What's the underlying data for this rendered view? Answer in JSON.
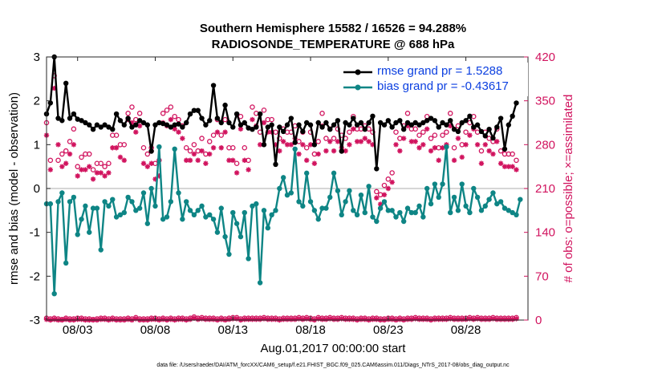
{
  "colors": {
    "rmse": "#000000",
    "bias": "#0e8585",
    "obs": "#d1135e",
    "zero": "#bdbdbd",
    "legend_text": "#0b3fe0"
  },
  "chart_data": {
    "type": "line",
    "title": "Southern Hemisphere 15582 / 16526 = 94.288%",
    "subtitle": "RADIOSONDE_TEMPERATURE @ 688 hPa",
    "xlabel": "Aug.01,2017 00:00:00 start",
    "ylabel_left": "rmse and bias (model - observation)",
    "ylabel_right": "# of obs: o=possible; ×=assimilated",
    "footnote": "data file: /Users/raeder/DAI/ATM_forcXX/CAM6_setup/f.e21.FHIST_BGC.f09_025.CAM6assim.011/Diags_NTrS_2017-08/obs_diag_output.nc",
    "xlim": [
      1,
      32
    ],
    "ylim_left": [
      -3,
      3
    ],
    "ylim_right": [
      0,
      420
    ],
    "xticks": [
      3,
      8,
      13,
      18,
      23,
      28
    ],
    "xtick_labels": [
      "08/03",
      "08/08",
      "08/13",
      "08/18",
      "08/23",
      "08/28"
    ],
    "yticks_left": [
      -3,
      -2,
      -1,
      0,
      1,
      2,
      3
    ],
    "yticks_right": [
      0,
      70,
      140,
      210,
      280,
      350,
      420
    ],
    "legend": {
      "rmse_label": "rmse grand pr = 1.5288",
      "bias_label": "bias grand pr = -0.43617"
    },
    "times": [
      1.0,
      1.25,
      1.5,
      1.75,
      2.0,
      2.25,
      2.5,
      2.75,
      3.0,
      3.25,
      3.5,
      3.75,
      4.0,
      4.25,
      4.5,
      4.75,
      5.0,
      5.25,
      5.5,
      5.75,
      6.0,
      6.25,
      6.5,
      6.75,
      7.0,
      7.25,
      7.5,
      7.75,
      8.0,
      8.25,
      8.5,
      8.75,
      9.0,
      9.25,
      9.5,
      9.75,
      10.0,
      10.25,
      10.5,
      10.75,
      11.0,
      11.25,
      11.5,
      11.75,
      12.0,
      12.25,
      12.5,
      12.75,
      13.0,
      13.25,
      13.5,
      13.75,
      14.0,
      14.25,
      14.5,
      14.75,
      15.0,
      15.25,
      15.5,
      15.75,
      16.0,
      16.25,
      16.5,
      16.75,
      17.0,
      17.25,
      17.5,
      17.75,
      18.0,
      18.25,
      18.5,
      18.75,
      19.0,
      19.25,
      19.5,
      19.75,
      20.0,
      20.25,
      20.5,
      20.75,
      21.0,
      21.25,
      21.5,
      21.75,
      22.0,
      22.25,
      22.5,
      22.75,
      23.0,
      23.25,
      23.5,
      23.75,
      24.0,
      24.25,
      24.5,
      24.75,
      25.0,
      25.25,
      25.5,
      25.75,
      26.0,
      26.25,
      26.5,
      26.75,
      27.0,
      27.25,
      27.5,
      27.75,
      28.0,
      28.25,
      28.5,
      28.75,
      29.0,
      29.25,
      29.5,
      29.75,
      30.0,
      30.25,
      30.5,
      30.75,
      31.0,
      31.25,
      31.5,
      31.75
    ],
    "series": [
      {
        "name": "rmse",
        "values": [
          1.7,
          1.95,
          3.0,
          1.6,
          1.55,
          2.4,
          1.6,
          1.7,
          1.58,
          1.55,
          1.5,
          1.45,
          1.35,
          1.45,
          1.4,
          1.45,
          1.4,
          1.35,
          1.7,
          1.55,
          1.45,
          1.6,
          1.4,
          1.45,
          1.55,
          1.5,
          1.45,
          0.85,
          1.45,
          1.5,
          1.48,
          1.45,
          1.4,
          1.45,
          1.47,
          1.4,
          1.5,
          1.7,
          1.78,
          1.78,
          1.6,
          1.45,
          1.55,
          2.35,
          1.6,
          1.5,
          1.9,
          1.5,
          1.4,
          1.7,
          1.45,
          1.5,
          1.38,
          1.35,
          1.4,
          1.7,
          1.0,
          1.4,
          1.45,
          0.55,
          1.4,
          1.3,
          1.45,
          1.6,
          1.05,
          1.45,
          1.3,
          1.5,
          1.45,
          1.0,
          1.5,
          1.4,
          1.5,
          1.35,
          1.45,
          1.55,
          0.85,
          1.5,
          1.45,
          1.6,
          1.45,
          1.5,
          1.35,
          1.5,
          1.65,
          0.45,
          1.5,
          1.45,
          1.55,
          1.4,
          1.5,
          1.55,
          1.35,
          1.5,
          1.45,
          1.5,
          1.45,
          1.5,
          1.55,
          1.6,
          1.55,
          1.4,
          1.5,
          1.45,
          1.55,
          1.35,
          1.3,
          1.5,
          1.55,
          1.65,
          1.4,
          1.45,
          1.3,
          1.2,
          1.35,
          1.15,
          1.4,
          1.6,
          0.9,
          1.45,
          1.65,
          1.95
        ]
      },
      {
        "name": "bias",
        "values": [
          -0.35,
          -0.35,
          -2.4,
          -0.3,
          -0.1,
          -1.7,
          -0.3,
          -0.2,
          -1.05,
          -0.7,
          -0.4,
          -1.0,
          -0.45,
          -0.45,
          -1.4,
          -0.3,
          -0.4,
          -0.25,
          -0.65,
          -0.6,
          -0.55,
          -0.2,
          -0.3,
          -0.5,
          -0.45,
          -0.1,
          -0.8,
          0.0,
          -0.4,
          0.95,
          -0.7,
          -0.65,
          -0.3,
          0.9,
          -0.1,
          -0.7,
          -0.3,
          -0.5,
          -0.6,
          -0.5,
          -0.4,
          -0.65,
          -0.6,
          -0.7,
          -1.0,
          -0.45,
          -1.1,
          -1.5,
          -0.55,
          -0.8,
          -1.1,
          -0.55,
          -1.6,
          -0.4,
          -0.35,
          -2.15,
          -0.5,
          -0.9,
          -0.6,
          -0.5,
          0.0,
          0.25,
          -0.15,
          -0.1,
          0.9,
          -0.3,
          -0.4,
          0.35,
          -0.3,
          -0.5,
          -0.7,
          -0.45,
          -0.45,
          -0.2,
          0.35,
          -0.05,
          -0.6,
          -0.3,
          -0.05,
          -0.5,
          -0.6,
          -0.15,
          -0.55,
          0.05,
          -0.65,
          -0.75,
          -0.45,
          -0.3,
          -0.5,
          -0.5,
          -0.65,
          -0.55,
          -0.75,
          -0.45,
          -0.55,
          -0.55,
          -0.4,
          -0.65,
          0.0,
          -0.35,
          0.1,
          -0.2,
          0.1,
          0.95,
          -0.55,
          -0.2,
          -0.5,
          0.1,
          -0.4,
          -0.55,
          0.0,
          -0.2,
          -0.5,
          -0.4,
          -0.25,
          -0.1,
          -0.35,
          -0.3,
          -0.45,
          -0.5,
          -0.55,
          -0.6,
          -0.25
        ]
      },
      {
        "name": "obs_possible",
        "values": [
          315,
          255,
          390,
          255,
          265,
          270,
          285,
          305,
          245,
          260,
          265,
          265,
          240,
          250,
          250,
          245,
          250,
          295,
          295,
          280,
          280,
          330,
          340,
          320,
          330,
          275,
          265,
          275,
          250,
          255,
          330,
          335,
          340,
          325,
          320,
          310,
          275,
          270,
          280,
          270,
          290,
          265,
          285,
          295,
          320,
          295,
          320,
          275,
          275,
          250,
          325,
          275,
          255,
          340,
          330,
          300,
          335,
          320,
          320,
          300,
          290,
          305,
          300,
          300,
          310,
          285,
          300,
          275,
          300,
          265,
          285,
          330,
          290,
          305,
          290,
          305,
          295,
          290,
          300,
          325,
          305,
          305,
          310,
          305,
          300,
          205,
          200,
          215,
          225,
          235,
          300,
          290,
          310,
          330,
          305,
          305,
          295,
          300,
          325,
          290,
          295,
          275,
          295,
          300,
          330,
          275,
          310,
          280,
          300,
          315,
          325,
          300,
          270,
          300,
          290,
          285,
          305,
          270,
          265,
          265,
          265,
          255
        ]
      },
      {
        "name": "obs_assimilated",
        "values": [
          295,
          240,
          370,
          280,
          245,
          250,
          265,
          280,
          230,
          240,
          240,
          245,
          225,
          235,
          235,
          230,
          235,
          275,
          275,
          260,
          255,
          320,
          315,
          300,
          310,
          250,
          245,
          250,
          225,
          230,
          315,
          310,
          320,
          305,
          300,
          290,
          255,
          255,
          265,
          255,
          270,
          250,
          265,
          275,
          300,
          275,
          300,
          255,
          255,
          235,
          305,
          255,
          240,
          320,
          310,
          280,
          315,
          300,
          300,
          280,
          270,
          285,
          280,
          280,
          290,
          265,
          280,
          255,
          280,
          250,
          265,
          310,
          270,
          285,
          270,
          285,
          275,
          270,
          280,
          305,
          285,
          285,
          290,
          285,
          280,
          195,
          185,
          200,
          210,
          220,
          280,
          270,
          290,
          310,
          285,
          285,
          275,
          280,
          305,
          270,
          275,
          255,
          275,
          280,
          310,
          255,
          290,
          260,
          280,
          295,
          305,
          280,
          250,
          280,
          270,
          265,
          285,
          250,
          245,
          245,
          245,
          240
        ]
      },
      {
        "name": "obs_possible_bottom",
        "values": [
          3,
          2,
          3,
          2,
          1,
          3,
          2,
          2,
          3,
          3,
          2,
          2,
          1,
          2,
          3,
          3,
          2,
          3,
          2,
          2,
          2,
          3,
          2,
          4,
          2,
          2,
          2,
          3,
          3,
          2,
          3,
          2,
          3,
          2,
          3,
          3,
          2,
          3,
          5,
          3,
          4,
          3,
          3,
          3,
          2,
          3,
          2,
          3,
          4,
          4,
          2,
          3,
          3,
          3,
          3,
          3,
          4,
          3,
          3,
          3,
          2,
          3,
          3,
          3,
          3,
          4,
          3,
          4,
          3,
          2,
          4,
          3,
          3,
          4,
          3,
          3,
          4,
          3,
          3,
          3,
          2,
          3,
          3,
          2,
          3,
          3,
          2,
          2,
          3,
          3,
          2,
          3,
          2,
          3,
          3,
          4,
          3,
          3,
          3,
          2,
          3,
          3,
          3,
          3,
          4,
          3,
          3,
          3,
          3,
          4,
          3,
          4,
          3,
          3,
          3,
          4,
          3,
          3,
          3,
          3,
          3,
          4
        ]
      },
      {
        "name": "obs_assimilated_bottom",
        "values": [
          1,
          0,
          1,
          0,
          0,
          1,
          0,
          0,
          1,
          1,
          0,
          0,
          0,
          0,
          1,
          1,
          0,
          1,
          0,
          0,
          0,
          1,
          0,
          2,
          0,
          0,
          0,
          1,
          1,
          0,
          1,
          0,
          1,
          0,
          1,
          1,
          0,
          1,
          3,
          1,
          2,
          1,
          1,
          1,
          0,
          1,
          0,
          1,
          2,
          2,
          0,
          1,
          1,
          1,
          1,
          1,
          2,
          1,
          1,
          1,
          0,
          1,
          1,
          1,
          1,
          2,
          1,
          2,
          1,
          0,
          2,
          1,
          1,
          2,
          1,
          1,
          2,
          1,
          1,
          1,
          0,
          1,
          1,
          0,
          1,
          1,
          0,
          0,
          1,
          1,
          0,
          1,
          0,
          1,
          1,
          2,
          1,
          1,
          1,
          0,
          1,
          1,
          1,
          1,
          2,
          1,
          1,
          1,
          1,
          2,
          1,
          2,
          1,
          1,
          1,
          2,
          1,
          1,
          1,
          1,
          1,
          2
        ]
      }
    ]
  }
}
